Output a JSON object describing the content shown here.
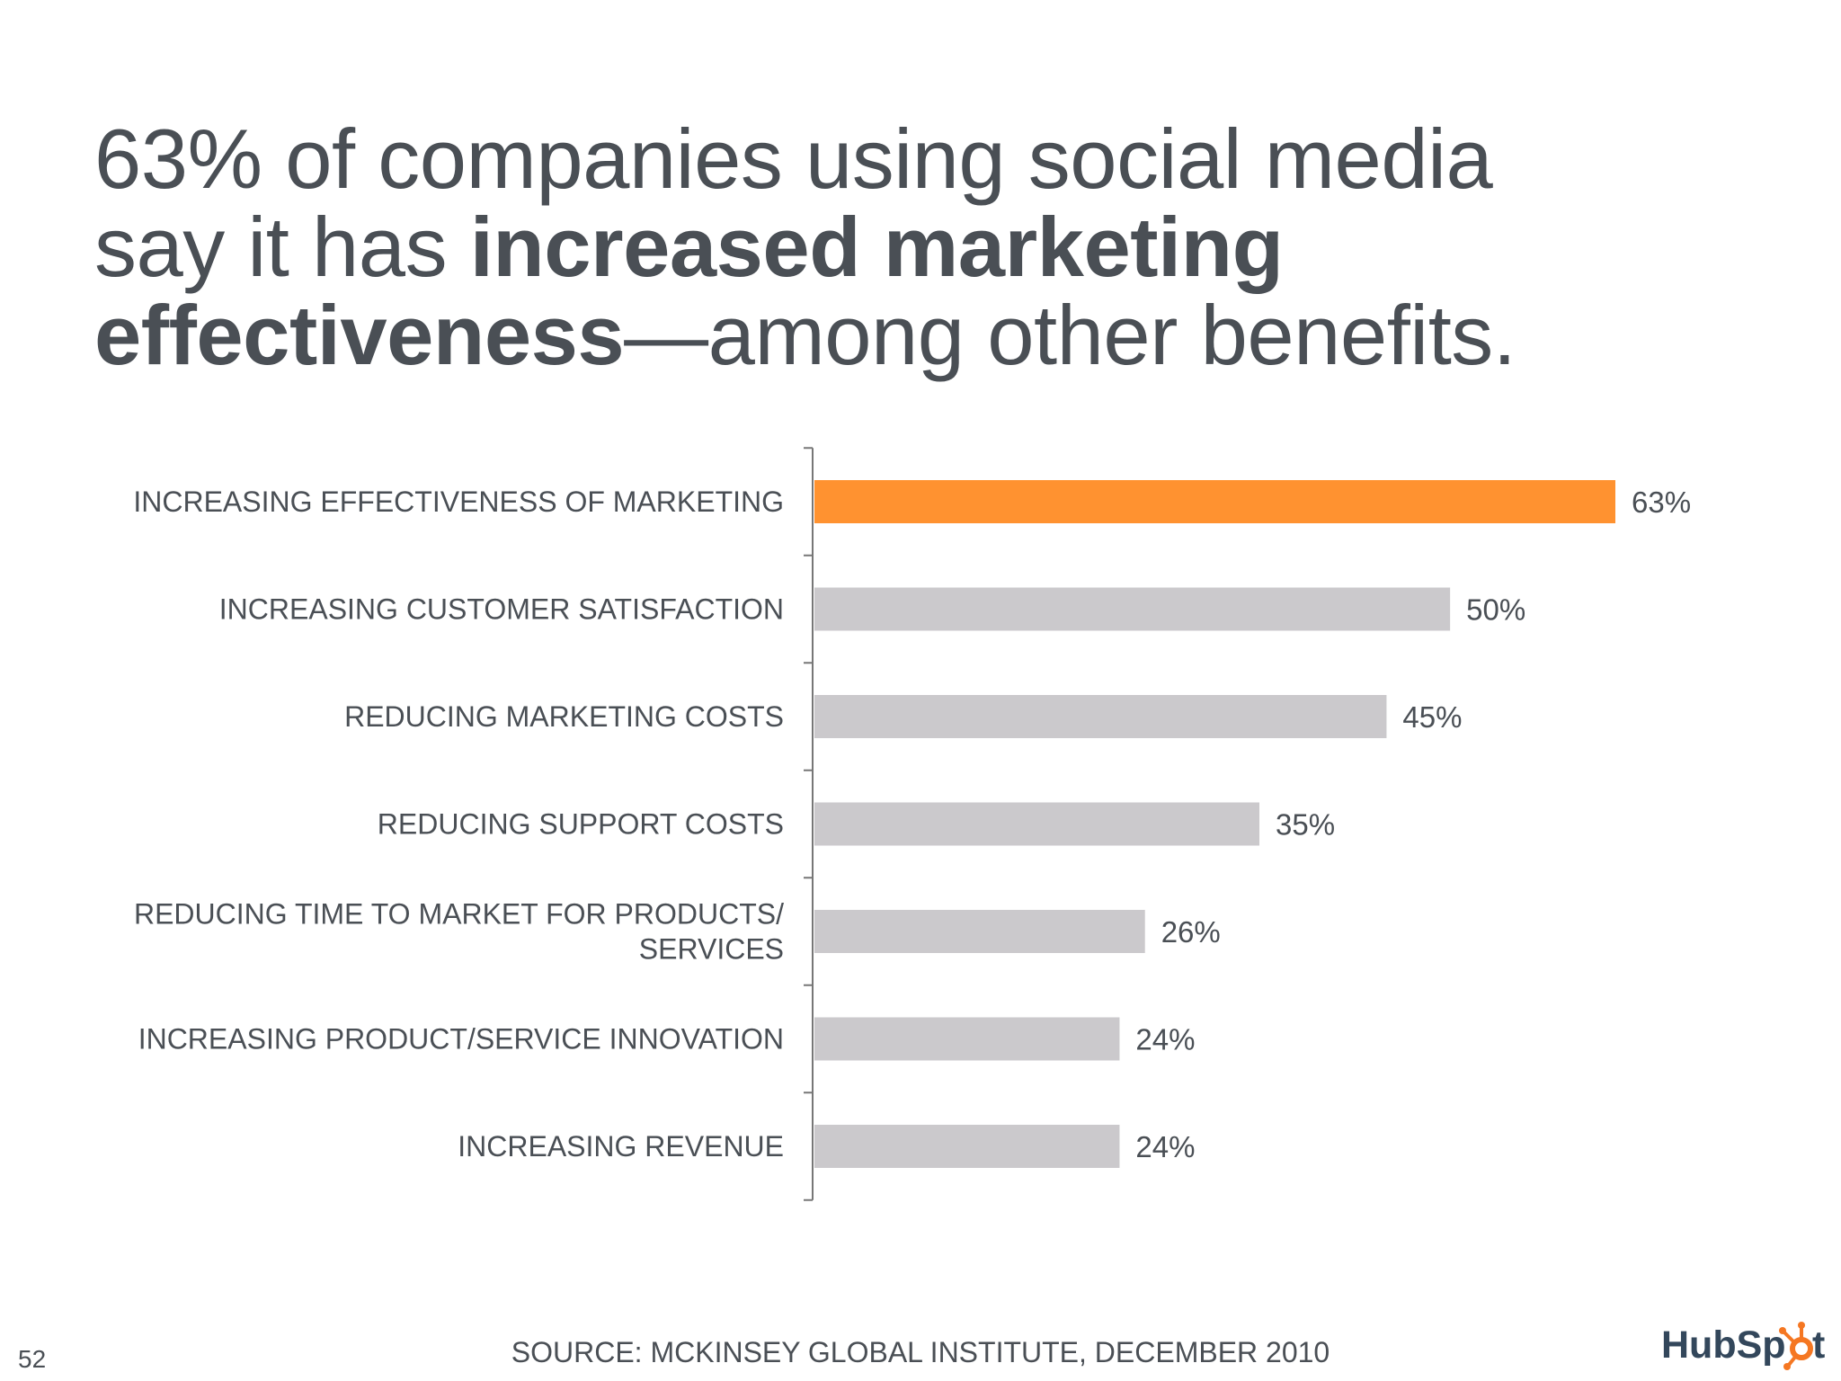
{
  "title": {
    "line1": "63% of companies using social media",
    "line2_plain": "say it has ",
    "line2_bold": "increased marketing",
    "line3_bold": "effectiveness",
    "line3_plain": "—among other benefits."
  },
  "chart_data": {
    "type": "bar",
    "orientation": "horizontal",
    "categories": [
      "INCREASING EFFECTIVENESS OF MARKETING",
      "INCREASING CUSTOMER SATISFACTION",
      "REDUCING MARKETING COSTS",
      "REDUCING SUPPORT COSTS",
      "REDUCING TIME TO MARKET FOR PRODUCTS/ SERVICES",
      "INCREASING PRODUCT/SERVICE INNOVATION",
      "INCREASING REVENUE"
    ],
    "category_lines": [
      [
        "INCREASING EFFECTIVENESS OF MARKETING"
      ],
      [
        "INCREASING CUSTOMER SATISFACTION"
      ],
      [
        "REDUCING MARKETING COSTS"
      ],
      [
        "REDUCING SUPPORT COSTS"
      ],
      [
        "REDUCING TIME TO MARKET FOR PRODUCTS/",
        "SERVICES"
      ],
      [
        "INCREASING PRODUCT/SERVICE INNOVATION"
      ],
      [
        "INCREASING REVENUE"
      ]
    ],
    "values": [
      63,
      50,
      45,
      35,
      26,
      24,
      24
    ],
    "value_labels": [
      "63%",
      "50%",
      "45%",
      "35%",
      "26%",
      "24%",
      "24%"
    ],
    "unit": "%",
    "xlim": [
      0,
      63
    ],
    "highlight_index": 0,
    "colors": {
      "highlight": "#ff9230",
      "default": "#cbc9cc",
      "axis": "#777777"
    },
    "title": "",
    "xlabel": "",
    "ylabel": "",
    "grid": false,
    "legend": "none"
  },
  "footer": {
    "source": "SOURCE: MCKINSEY GLOBAL INSTITUTE, DECEMBER 2010",
    "page_number": "52",
    "logo_text": "HubSpot",
    "logo_colors": {
      "text": "#33475b",
      "accent": "#f57722"
    }
  }
}
